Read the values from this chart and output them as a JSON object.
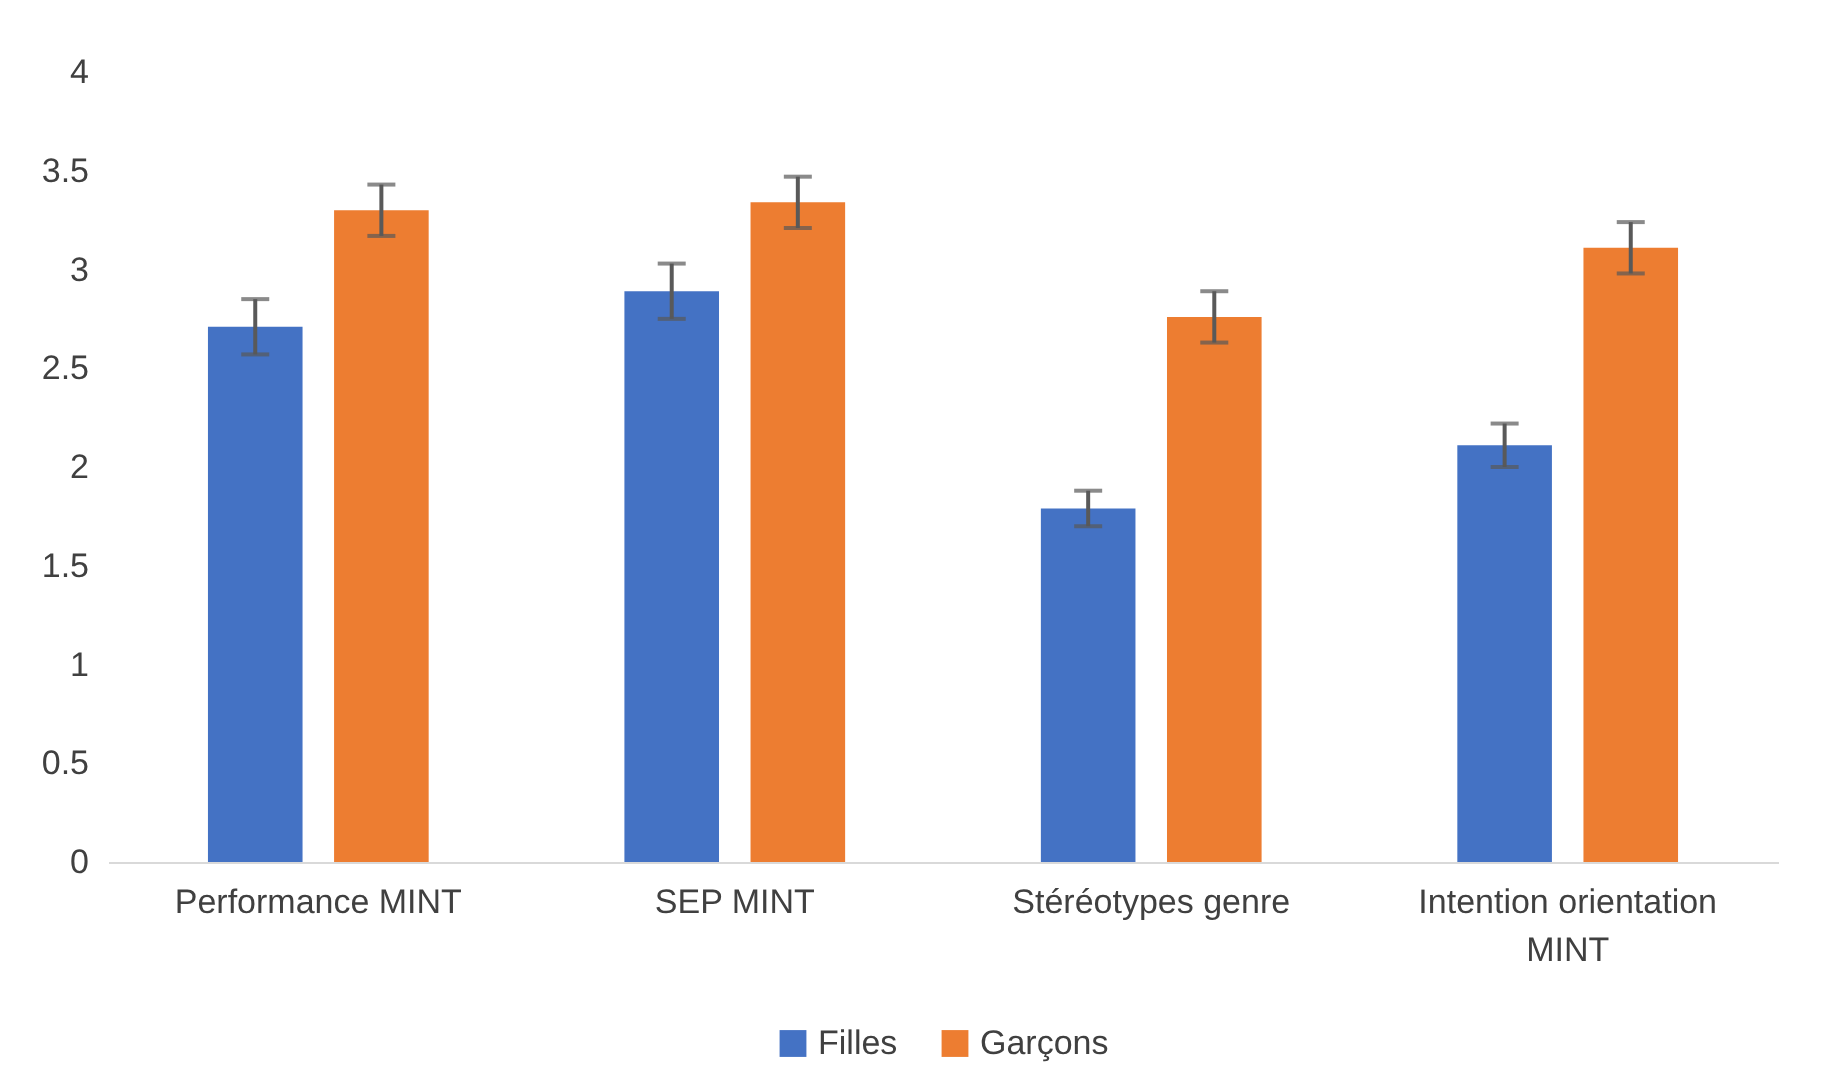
{
  "chart_data": {
    "type": "bar",
    "categories": [
      "Performance MINT",
      "SEP MINT",
      "Stéréotypes genre",
      "Intention orientation MINT"
    ],
    "series": [
      {
        "name": "Filles",
        "color": "#4472c4",
        "values": [
          2.71,
          2.89,
          1.79,
          2.11
        ],
        "errors": [
          0.14,
          0.14,
          0.09,
          0.11
        ]
      },
      {
        "name": "Garçons",
        "color": "#ed7d31",
        "values": [
          3.3,
          3.34,
          2.76,
          3.11
        ],
        "errors": [
          0.13,
          0.13,
          0.13,
          0.13
        ]
      }
    ],
    "ylim": [
      0,
      4
    ],
    "yticks": [
      0,
      0.5,
      1,
      1.5,
      2,
      2.5,
      3,
      3.5,
      4
    ],
    "grid": false,
    "legend": "bottom"
  }
}
